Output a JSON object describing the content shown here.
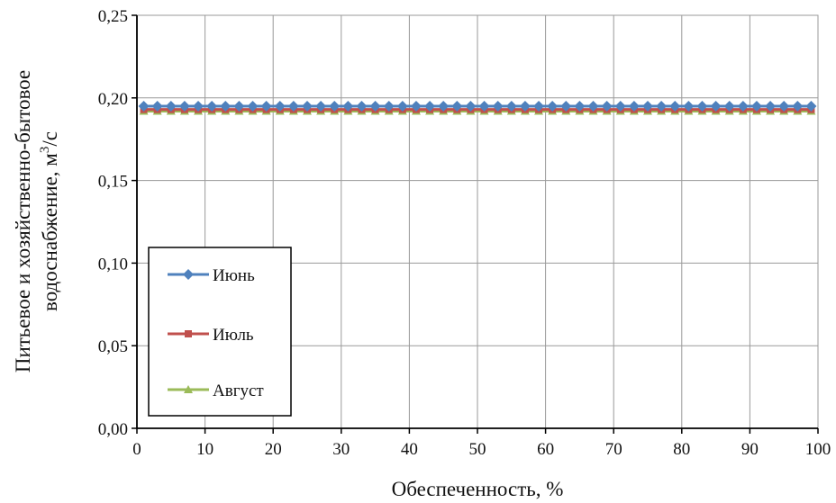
{
  "chart_data": {
    "type": "line",
    "title": "",
    "xlabel": "Обеспеченность, %",
    "ylabel_line1": "Питьевое и хозяйственно-бытовое",
    "ylabel_line2_prefix": "водоснабжение, м",
    "ylabel_line2_sup": "3",
    "ylabel_line2_suffix": "/с",
    "xlim": [
      0,
      100
    ],
    "ylim": [
      0,
      0.25
    ],
    "x_ticks": [
      "0",
      "10",
      "20",
      "30",
      "40",
      "50",
      "60",
      "70",
      "80",
      "90",
      "100"
    ],
    "y_ticks": [
      "0,00",
      "0,05",
      "0,10",
      "0,15",
      "0,20",
      "0,25"
    ],
    "grid": true,
    "legend_position": "lower-left",
    "x": [
      1,
      3,
      5,
      7,
      9,
      11,
      13,
      15,
      17,
      19,
      21,
      23,
      25,
      27,
      29,
      31,
      33,
      35,
      37,
      39,
      41,
      43,
      45,
      47,
      49,
      51,
      53,
      55,
      57,
      59,
      61,
      63,
      65,
      67,
      69,
      71,
      73,
      75,
      77,
      79,
      81,
      83,
      85,
      87,
      89,
      91,
      93,
      95,
      97,
      99
    ],
    "series": [
      {
        "name": "Июнь",
        "value": 0.195,
        "color": "#4f81bd",
        "marker": "diamond"
      },
      {
        "name": "Июль",
        "value": 0.193,
        "color": "#c0504d",
        "marker": "square"
      },
      {
        "name": "Август",
        "value": 0.192,
        "color": "#9bbb59",
        "marker": "triangle"
      }
    ]
  }
}
